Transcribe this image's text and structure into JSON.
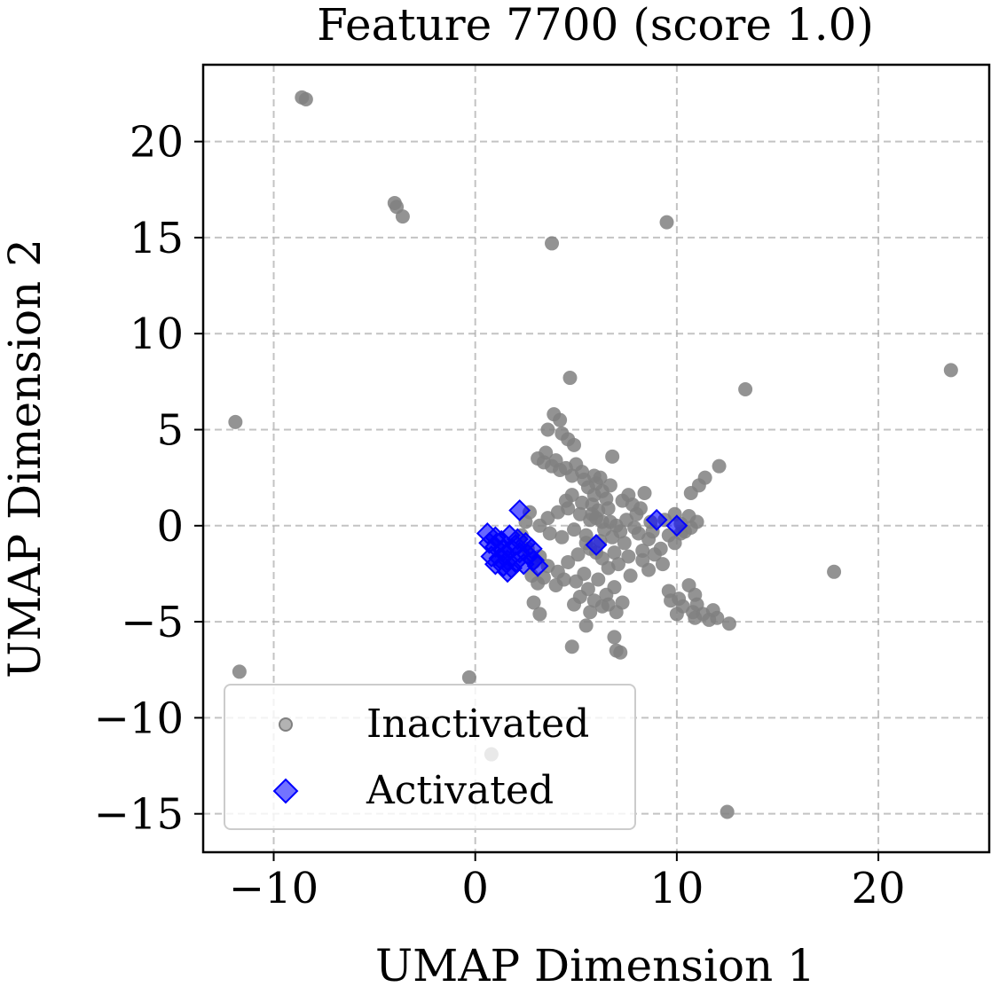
{
  "chart_data": {
    "type": "scatter",
    "title": "Feature 7700 (score 1.0)",
    "xlabel": "UMAP Dimension 1",
    "ylabel": "UMAP Dimension 2",
    "xlim": [
      -13.5,
      25.5
    ],
    "ylim": [
      -17,
      24
    ],
    "xticks": [
      -10,
      0,
      10,
      20
    ],
    "xtick_labels": [
      "−10",
      "0",
      "10",
      "20"
    ],
    "yticks": [
      -15,
      -10,
      -5,
      0,
      5,
      10,
      15,
      20
    ],
    "ytick_labels": [
      "−15",
      "−10",
      "−5",
      "0",
      "5",
      "10",
      "15",
      "20"
    ],
    "grid": true,
    "legend_position": "lower-left",
    "colors": {
      "inactivated": "#808080",
      "activated": "#0000ff"
    },
    "series": [
      {
        "name": "Inactivated",
        "marker": "circle",
        "points": [
          [
            -8.6,
            22.3
          ],
          [
            -8.4,
            22.2
          ],
          [
            -4.0,
            16.8
          ],
          [
            -3.9,
            16.6
          ],
          [
            -3.6,
            16.1
          ],
          [
            9.5,
            15.8
          ],
          [
            3.8,
            14.7
          ],
          [
            4.7,
            7.7
          ],
          [
            13.4,
            7.1
          ],
          [
            23.6,
            8.1
          ],
          [
            -11.9,
            5.4
          ],
          [
            -11.7,
            -7.6
          ],
          [
            -0.3,
            -7.9
          ],
          [
            0.8,
            -11.9
          ],
          [
            12.5,
            -14.9
          ],
          [
            17.8,
            -2.4
          ],
          [
            4.8,
            -6.3
          ],
          [
            7.0,
            -6.5
          ],
          [
            7.2,
            -6.6
          ],
          [
            6.9,
            -5.8
          ],
          [
            5.5,
            -5.2
          ],
          [
            3.2,
            -4.6
          ],
          [
            2.9,
            -4.0
          ],
          [
            3.9,
            5.8
          ],
          [
            4.2,
            5.5
          ],
          [
            3.6,
            5.0
          ],
          [
            4.3,
            4.8
          ],
          [
            4.6,
            4.5
          ],
          [
            4.9,
            4.2
          ],
          [
            3.5,
            3.8
          ],
          [
            3.1,
            3.5
          ],
          [
            3.4,
            3.3
          ],
          [
            4.0,
            3.4
          ],
          [
            4.5,
            3.0
          ],
          [
            5.0,
            3.2
          ],
          [
            5.3,
            2.8
          ],
          [
            6.8,
            3.6
          ],
          [
            12.1,
            3.1
          ],
          [
            11.4,
            2.5
          ],
          [
            11.1,
            2.1
          ],
          [
            10.7,
            1.7
          ],
          [
            6.0,
            2.2
          ],
          [
            5.6,
            2.0
          ],
          [
            5.9,
            1.6
          ],
          [
            6.3,
            1.8
          ],
          [
            6.5,
            1.4
          ],
          [
            5.8,
            1.1
          ],
          [
            6.1,
            0.8
          ],
          [
            6.6,
            0.9
          ],
          [
            7.3,
            1.3
          ],
          [
            7.8,
            1.1
          ],
          [
            8.4,
            1.7
          ],
          [
            8.0,
            0.6
          ],
          [
            7.5,
            0.3
          ],
          [
            7.0,
            0.0
          ],
          [
            6.4,
            -0.2
          ],
          [
            5.7,
            0.3
          ],
          [
            5.2,
            0.6
          ],
          [
            4.6,
            0.9
          ],
          [
            4.1,
            0.7
          ],
          [
            3.6,
            0.4
          ],
          [
            3.2,
            0.0
          ],
          [
            3.7,
            -0.4
          ],
          [
            4.3,
            -0.6
          ],
          [
            4.9,
            -0.2
          ],
          [
            5.5,
            -0.5
          ],
          [
            6.2,
            -0.8
          ],
          [
            6.8,
            -0.6
          ],
          [
            7.4,
            -0.9
          ],
          [
            8.1,
            -0.4
          ],
          [
            8.6,
            -0.7
          ],
          [
            9.2,
            -1.2
          ],
          [
            9.6,
            -0.5
          ],
          [
            10.2,
            0.1
          ],
          [
            10.6,
            0.5
          ],
          [
            10.4,
            -0.3
          ],
          [
            9.9,
            -0.9
          ],
          [
            8.7,
            0.2
          ],
          [
            8.3,
            -1.3
          ],
          [
            8.6,
            -2.3
          ],
          [
            7.6,
            -1.6
          ],
          [
            6.9,
            -1.4
          ],
          [
            6.3,
            -1.7
          ],
          [
            5.7,
            -1.2
          ],
          [
            5.1,
            -1.5
          ],
          [
            4.6,
            -1.9
          ],
          [
            4.1,
            -2.4
          ],
          [
            3.6,
            -2.1
          ],
          [
            3.2,
            -1.6
          ],
          [
            2.8,
            -2.6
          ],
          [
            3.1,
            -3.0
          ],
          [
            5.4,
            -2.5
          ],
          [
            5.0,
            -2.9
          ],
          [
            5.6,
            -3.3
          ],
          [
            6.1,
            -2.8
          ],
          [
            6.5,
            -3.6
          ],
          [
            5.9,
            -3.9
          ],
          [
            5.2,
            -3.7
          ],
          [
            4.9,
            -4.1
          ],
          [
            6.3,
            -4.2
          ],
          [
            6.9,
            -3.2
          ],
          [
            7.3,
            -4.0
          ],
          [
            7.0,
            -4.5
          ],
          [
            6.6,
            -4.1
          ],
          [
            5.7,
            -4.5
          ],
          [
            9.6,
            -3.4
          ],
          [
            10.1,
            -3.8
          ],
          [
            10.6,
            -3.1
          ],
          [
            10.9,
            -3.6
          ],
          [
            10.3,
            -4.2
          ],
          [
            10.8,
            -4.5
          ],
          [
            11.3,
            -4.6
          ],
          [
            11.6,
            -4.9
          ],
          [
            12.0,
            -4.8
          ],
          [
            11.0,
            -4.1
          ],
          [
            12.6,
            -5.1
          ],
          [
            9.7,
            -3.9
          ],
          [
            10.0,
            -4.6
          ],
          [
            10.9,
            -4.8
          ],
          [
            11.8,
            -4.4
          ],
          [
            4.5,
            1.3
          ],
          [
            4.8,
            1.6
          ],
          [
            5.3,
            1.2
          ],
          [
            6.0,
            0.4
          ],
          [
            6.7,
            0.2
          ],
          [
            7.2,
            -0.3
          ],
          [
            7.9,
            -0.1
          ],
          [
            8.8,
            -0.3
          ],
          [
            9.4,
            0.3
          ],
          [
            9.9,
            0.6
          ],
          [
            10.2,
            -0.4
          ],
          [
            10.7,
            -0.1
          ],
          [
            11.0,
            0.2
          ],
          [
            8.2,
            0.9
          ],
          [
            7.6,
            1.6
          ],
          [
            2.7,
            0.7
          ],
          [
            2.5,
            0.2
          ],
          [
            2.3,
            -0.5
          ],
          [
            2.6,
            -1.2
          ],
          [
            2.9,
            -1.9
          ],
          [
            3.4,
            -2.7
          ],
          [
            4.0,
            -3.1
          ],
          [
            4.4,
            -2.8
          ],
          [
            5.8,
            0.6
          ],
          [
            6.3,
            0.2
          ],
          [
            5.5,
            -0.9
          ],
          [
            6.0,
            -1.4
          ],
          [
            6.6,
            -2.2
          ],
          [
            7.1,
            -2.0
          ],
          [
            7.7,
            -2.6
          ],
          [
            8.3,
            -1.8
          ],
          [
            8.9,
            -1.5
          ],
          [
            9.3,
            -2.0
          ],
          [
            5.9,
            2.6
          ],
          [
            5.4,
            2.4
          ],
          [
            4.8,
            2.6
          ],
          [
            4.2,
            2.9
          ],
          [
            3.8,
            3.1
          ],
          [
            6.2,
            2.5
          ],
          [
            6.7,
            2.1
          ]
        ]
      },
      {
        "name": "Activated",
        "marker": "diamond",
        "points": [
          [
            2.2,
            0.8
          ],
          [
            0.6,
            -0.4
          ],
          [
            1.0,
            -0.6
          ],
          [
            1.3,
            -0.8
          ],
          [
            1.7,
            -0.5
          ],
          [
            2.1,
            -0.7
          ],
          [
            2.5,
            -0.9
          ],
          [
            2.8,
            -1.2
          ],
          [
            1.0,
            -1.1
          ],
          [
            1.4,
            -1.3
          ],
          [
            1.8,
            -1.2
          ],
          [
            2.2,
            -1.4
          ],
          [
            2.6,
            -1.5
          ],
          [
            0.8,
            -1.6
          ],
          [
            1.2,
            -1.7
          ],
          [
            1.6,
            -1.8
          ],
          [
            2.0,
            -1.9
          ],
          [
            2.4,
            -2.0
          ],
          [
            1.0,
            -2.0
          ],
          [
            1.4,
            -2.1
          ],
          [
            1.8,
            -2.2
          ],
          [
            1.6,
            -2.4
          ],
          [
            3.1,
            -2.1
          ],
          [
            2.9,
            -1.8
          ],
          [
            6.0,
            -1.0
          ],
          [
            9.0,
            0.3
          ],
          [
            10.0,
            0.0
          ],
          [
            0.7,
            -0.9
          ],
          [
            2.0,
            -1.0
          ],
          [
            1.5,
            -1.5
          ]
        ]
      }
    ]
  }
}
